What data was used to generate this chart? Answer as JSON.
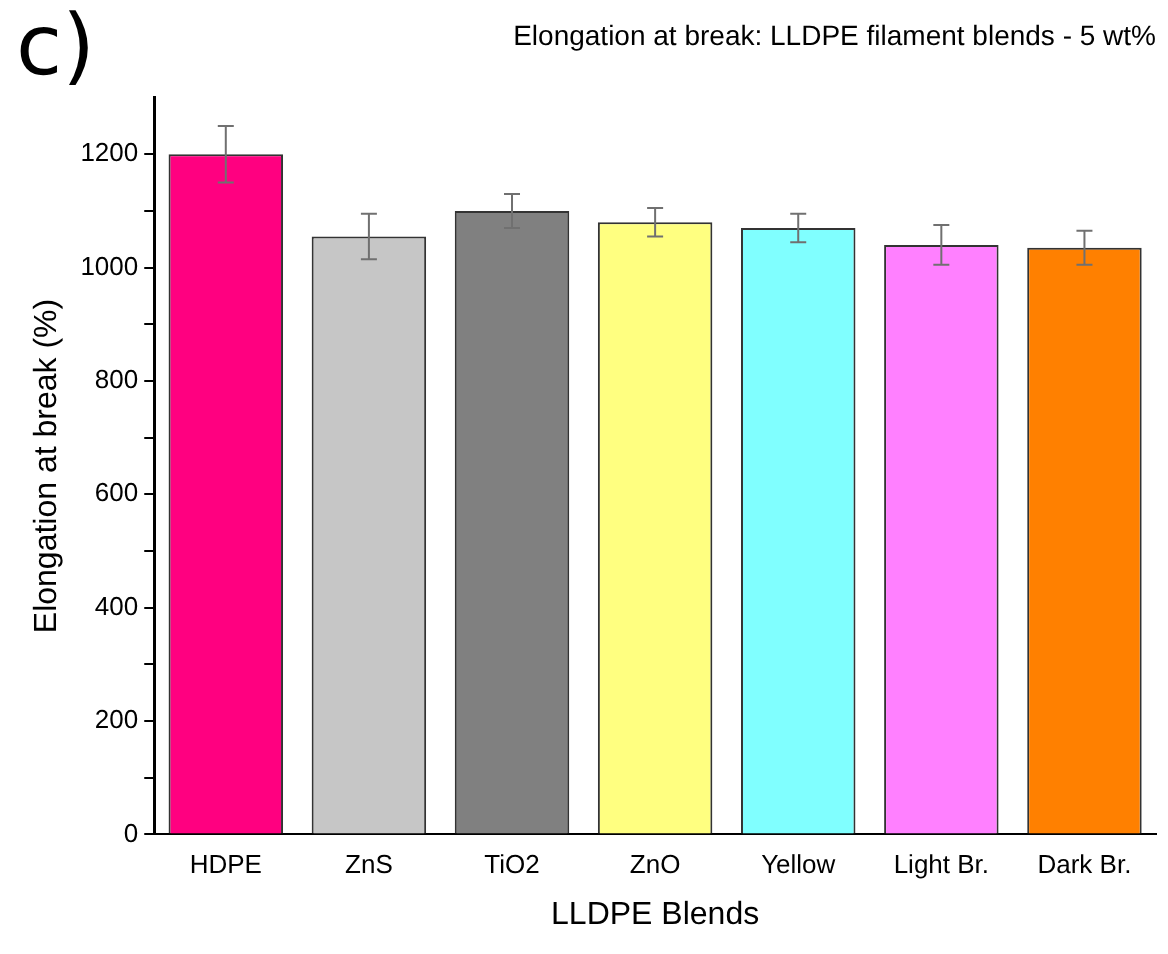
{
  "chart_data": {
    "type": "bar",
    "title": "Elongation at break: LLDPE filament blends - 5 wt%",
    "xlabel": "LLDPE Blends",
    "ylabel": "Elongation at break (%)",
    "annotations": [
      "c)"
    ],
    "categories": [
      "HDPE",
      "ZnS",
      "TiO2",
      "ZnO",
      "Yellow",
      "Light Br.",
      "Dark Br."
    ],
    "values": [
      1200,
      1055,
      1100,
      1080,
      1070,
      1040,
      1035
    ],
    "errors": [
      50,
      40,
      30,
      25,
      25,
      35,
      30
    ],
    "colors": [
      "#ff0080",
      "#c6c6c6",
      "#808080",
      "#ffff80",
      "#80ffff",
      "#ff80ff",
      "#ff8000"
    ],
    "ylim": [
      0,
      1300
    ],
    "yticks": [
      0,
      {
        "value": 100,
        "label": null
      },
      200,
      {
        "value": 300,
        "label": null
      },
      400,
      {
        "value": 500,
        "label": null
      },
      600,
      {
        "value": 700,
        "label": null
      },
      800,
      {
        "value": 900,
        "label": null
      },
      1000,
      {
        "value": 1100,
        "label": null
      },
      1200
    ],
    "grid": false,
    "legend": false
  }
}
